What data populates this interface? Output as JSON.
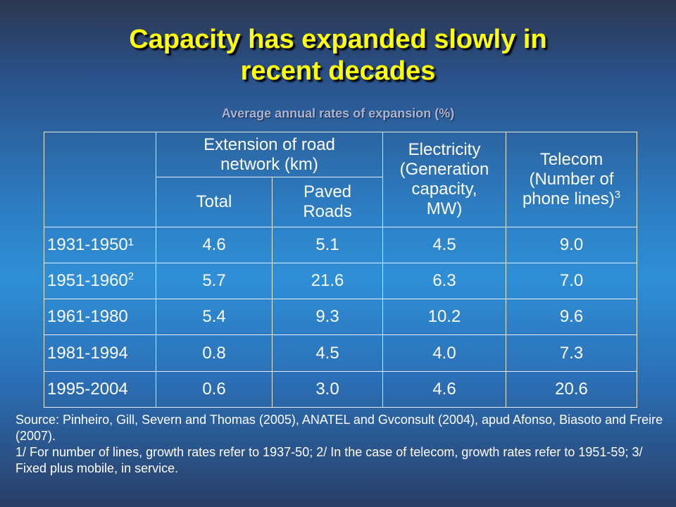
{
  "title_line1": "Capacity has expanded slowly in",
  "title_line2": "recent decades",
  "subtitle": "Average annual rates of expansion (%)",
  "table": {
    "header": {
      "road": "Extension of road\nnetwork (km)",
      "total": "Total",
      "paved": "Paved\nRoads",
      "electricity": "Electricity\n(Generation\ncapacity,\nMW)",
      "telecom": "Telecom\n(Number of\nphone lines)",
      "telecom_note": "3"
    },
    "rows": [
      {
        "period": "1931-1950¹",
        "note": "",
        "total": "4.6",
        "paved": "5.1",
        "electricity": "4.5",
        "telecom": "9.0"
      },
      {
        "period": "1951-1960",
        "note": "2",
        "total": "5.7",
        "paved": "21.6",
        "electricity": "6.3",
        "telecom": "7.0"
      },
      {
        "period": "1961-1980",
        "note": "",
        "total": "5.4",
        "paved": "9.3",
        "electricity": "10.2",
        "telecom": "9.6"
      },
      {
        "period": "1981-1994",
        "note": "",
        "total": "0.8",
        "paved": "4.5",
        "electricity": "4.0",
        "telecom": "7.3"
      },
      {
        "period": "1995-2004",
        "note": "",
        "total": "0.6",
        "paved": "3.0",
        "electricity": "4.6",
        "telecom": "20.6"
      }
    ]
  },
  "footnotes": {
    "source": "Source: Pinheiro, Gill, Severn and Thomas (2005), ANATEL and Gvconsult (2004), apud Afonso, Biasoto and Freire (2007).",
    "notes": "1/ For number of lines, growth rates refer to 1937-50; 2/ In the case of telecom, growth rates refer to 1951-59; 3/ Fixed plus mobile, in service."
  }
}
